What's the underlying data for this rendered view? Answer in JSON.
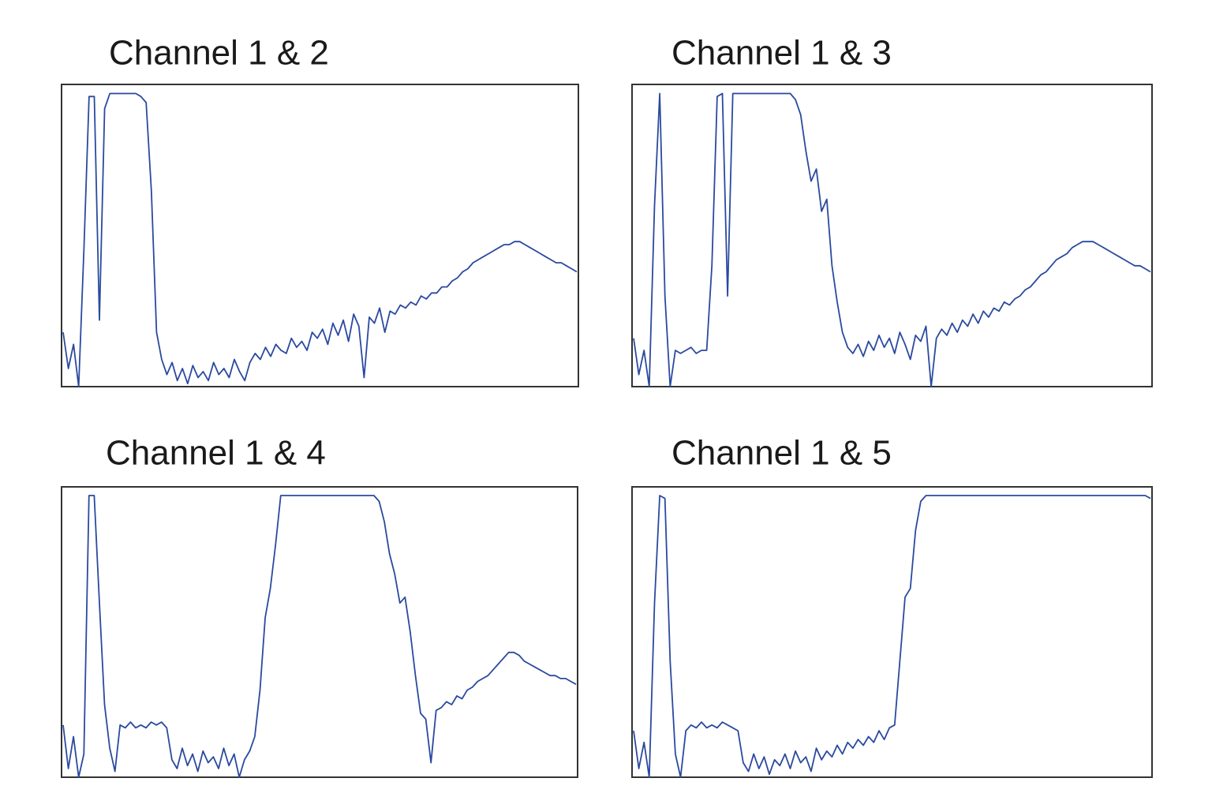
{
  "chart_data": [
    {
      "type": "line",
      "title": "Channel 1 & 2",
      "color": "#2a4a9f",
      "ylim": [
        0,
        100
      ],
      "values": [
        18,
        6,
        14,
        0,
        45,
        96,
        96,
        22,
        92,
        97,
        97,
        97,
        97,
        97,
        97,
        96,
        94,
        65,
        18,
        9,
        4,
        8,
        2,
        6,
        1,
        7,
        3,
        5,
        2,
        8,
        4,
        6,
        3,
        9,
        5,
        2,
        8,
        11,
        9,
        13,
        10,
        14,
        12,
        11,
        16,
        13,
        15,
        12,
        18,
        16,
        19,
        14,
        21,
        17,
        22,
        15,
        24,
        20,
        3,
        23,
        21,
        26,
        18,
        25,
        24,
        27,
        26,
        28,
        27,
        30,
        29,
        31,
        31,
        33,
        33,
        35,
        36,
        38,
        39,
        41,
        42,
        43,
        44,
        45,
        46,
        47,
        47,
        48,
        48,
        47,
        46,
        45,
        44,
        43,
        42,
        41,
        41,
        40,
        39,
        38
      ]
    },
    {
      "type": "line",
      "title": "Channel 1 & 3",
      "color": "#2a4a9f",
      "ylim": [
        0,
        100
      ],
      "values": [
        16,
        4,
        12,
        0,
        60,
        97,
        30,
        0,
        12,
        11,
        12,
        13,
        11,
        12,
        12,
        40,
        96,
        97,
        30,
        97,
        97,
        97,
        97,
        97,
        97,
        97,
        97,
        97,
        97,
        97,
        97,
        95,
        90,
        78,
        68,
        72,
        58,
        62,
        40,
        28,
        18,
        13,
        11,
        14,
        10,
        15,
        12,
        17,
        13,
        16,
        11,
        18,
        14,
        9,
        17,
        15,
        20,
        0,
        16,
        19,
        17,
        21,
        18,
        22,
        20,
        24,
        21,
        25,
        23,
        26,
        25,
        28,
        27,
        29,
        30,
        32,
        33,
        35,
        37,
        38,
        40,
        42,
        43,
        44,
        46,
        47,
        48,
        48,
        48,
        47,
        46,
        45,
        44,
        43,
        42,
        41,
        40,
        40,
        39,
        38
      ]
    },
    {
      "type": "line",
      "title": "Channel 1 & 4",
      "color": "#2a4a9f",
      "ylim": [
        0,
        100
      ],
      "values": [
        18,
        3,
        14,
        0,
        8,
        97,
        97,
        60,
        25,
        10,
        2,
        18,
        17,
        19,
        17,
        18,
        17,
        19,
        18,
        19,
        17,
        6,
        3,
        10,
        4,
        8,
        2,
        9,
        5,
        7,
        3,
        10,
        4,
        8,
        0,
        6,
        9,
        14,
        30,
        55,
        65,
        80,
        97,
        97,
        97,
        97,
        97,
        97,
        97,
        97,
        97,
        97,
        97,
        97,
        97,
        97,
        97,
        97,
        97,
        97,
        97,
        95,
        88,
        77,
        70,
        60,
        62,
        50,
        35,
        22,
        20,
        5,
        23,
        24,
        26,
        25,
        28,
        27,
        30,
        31,
        33,
        34,
        35,
        37,
        39,
        41,
        43,
        43,
        42,
        40,
        39,
        38,
        37,
        36,
        35,
        35,
        34,
        34,
        33,
        32
      ]
    },
    {
      "type": "line",
      "title": "Channel 1 & 5",
      "color": "#2a4a9f",
      "ylim": [
        0,
        100
      ],
      "values": [
        16,
        3,
        12,
        0,
        60,
        97,
        96,
        40,
        8,
        0,
        16,
        18,
        17,
        19,
        17,
        18,
        17,
        19,
        18,
        17,
        16,
        5,
        2,
        8,
        3,
        7,
        1,
        6,
        4,
        8,
        3,
        9,
        5,
        7,
        2,
        10,
        6,
        9,
        7,
        11,
        8,
        12,
        10,
        13,
        11,
        14,
        12,
        16,
        13,
        17,
        18,
        40,
        62,
        65,
        85,
        95,
        97,
        97,
        97,
        97,
        97,
        97,
        97,
        97,
        97,
        97,
        97,
        97,
        97,
        97,
        97,
        97,
        97,
        97,
        97,
        97,
        97,
        97,
        97,
        97,
        97,
        97,
        97,
        97,
        97,
        97,
        97,
        97,
        97,
        97,
        97,
        97,
        97,
        97,
        97,
        97,
        97,
        97,
        97,
        96
      ]
    }
  ]
}
